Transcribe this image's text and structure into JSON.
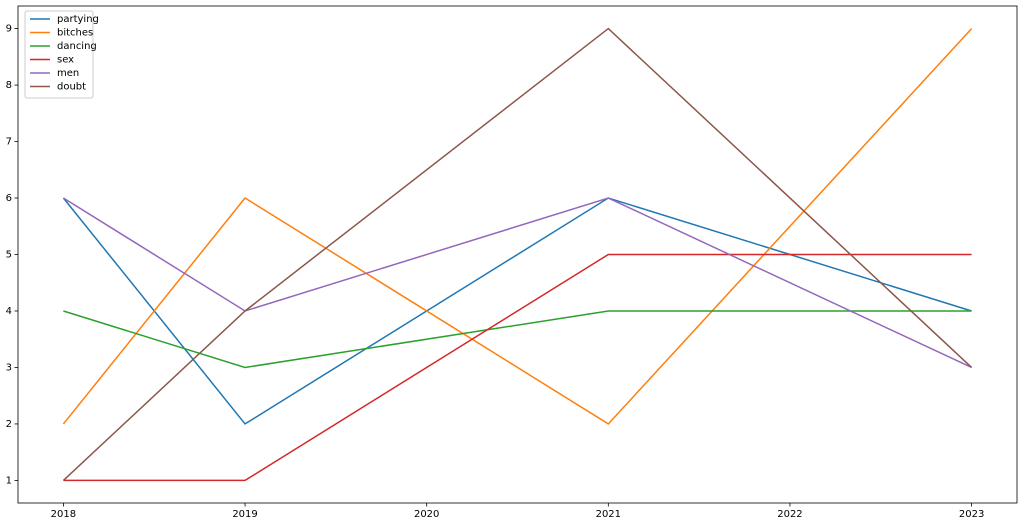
{
  "chart_data": {
    "type": "line",
    "x": [
      2018,
      2019,
      2021,
      2023
    ],
    "series": [
      {
        "name": "partying",
        "color": "#1f77b4",
        "values": [
          6,
          2,
          6,
          4
        ]
      },
      {
        "name": "bitches",
        "color": "#ff7f0e",
        "values": [
          2,
          6,
          2,
          9
        ]
      },
      {
        "name": "dancing",
        "color": "#2ca02c",
        "values": [
          4,
          3,
          4,
          4
        ]
      },
      {
        "name": "sex",
        "color": "#d62728",
        "values": [
          1,
          1,
          5,
          5
        ]
      },
      {
        "name": "men",
        "color": "#9467bd",
        "values": [
          6,
          4,
          6,
          3
        ]
      },
      {
        "name": "doubt",
        "color": "#8c564b",
        "values": [
          1,
          4,
          9,
          3
        ]
      }
    ],
    "xlim": [
      2017.75,
      2023.25
    ],
    "xticks": [
      2018,
      2019,
      2020,
      2021,
      2022,
      2023
    ],
    "ylim": [
      0.6,
      9.4
    ],
    "yticks": [
      1,
      2,
      3,
      4,
      5,
      6,
      7,
      8,
      9
    ],
    "grid": false,
    "legend": "upper-left"
  }
}
